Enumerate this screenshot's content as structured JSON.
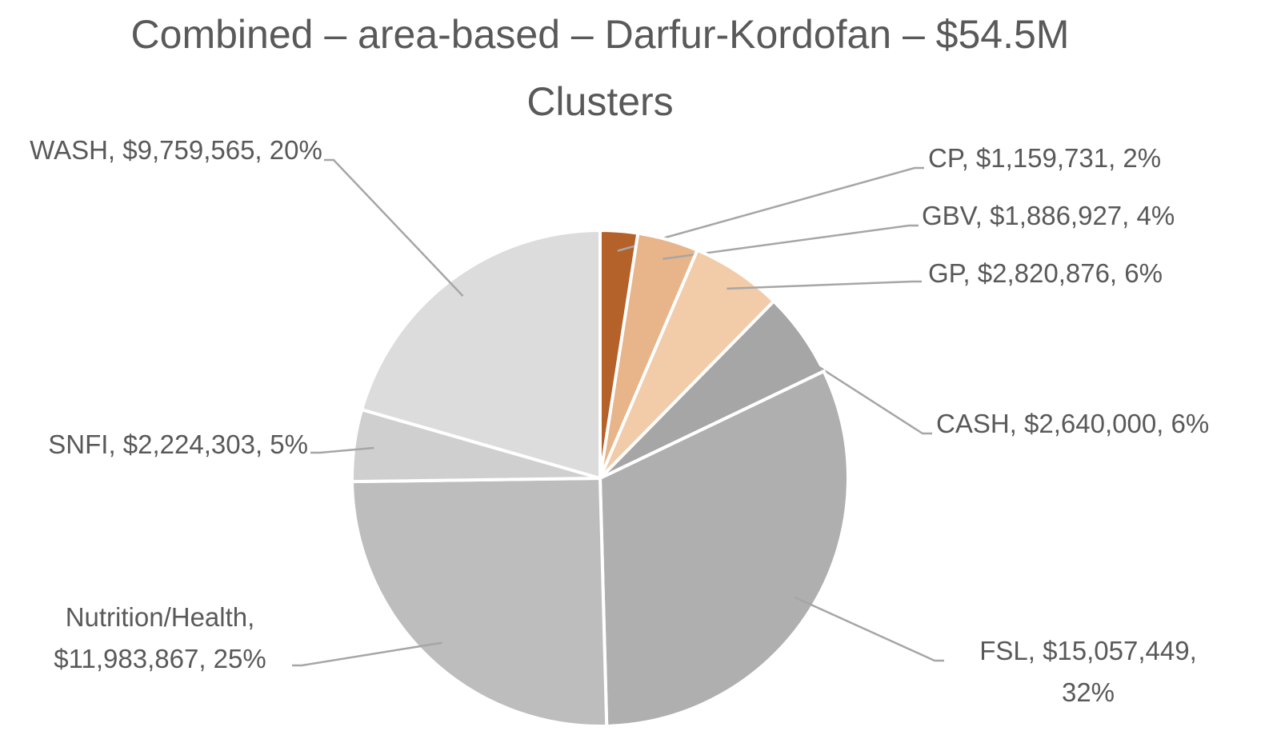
{
  "chart_data": {
    "type": "pie",
    "title": [
      "Combined – area-based – Darfur-Kordofan – $54.5M",
      "Clusters"
    ],
    "categories": [
      "CP",
      "GBV",
      "GP",
      "CASH",
      "FSL",
      "Nutrition/Health",
      "SNFI",
      "WASH"
    ],
    "values": [
      1159731,
      1886927,
      2820876,
      2640000,
      15057449,
      11983867,
      2224303,
      9759565
    ],
    "value_labels": [
      "CP, $1,159,731, 2%",
      "GBV, $1,886,927, 4%",
      "GP, $2,820,876, 6%",
      "CASH, $2,640,000, 6%",
      "FSL, $15,057,449, 32%",
      "Nutrition/Health, $11,983,867, 25%",
      "SNFI, $2,224,303, 5%",
      "WASH, $9,759,565, 20%"
    ],
    "colors": [
      "#b5612a",
      "#e8b48a",
      "#f2cba8",
      "#a6a6a6",
      "#afafaf",
      "#bdbdbd",
      "#cfcfcf",
      "#dcdcdc"
    ]
  }
}
